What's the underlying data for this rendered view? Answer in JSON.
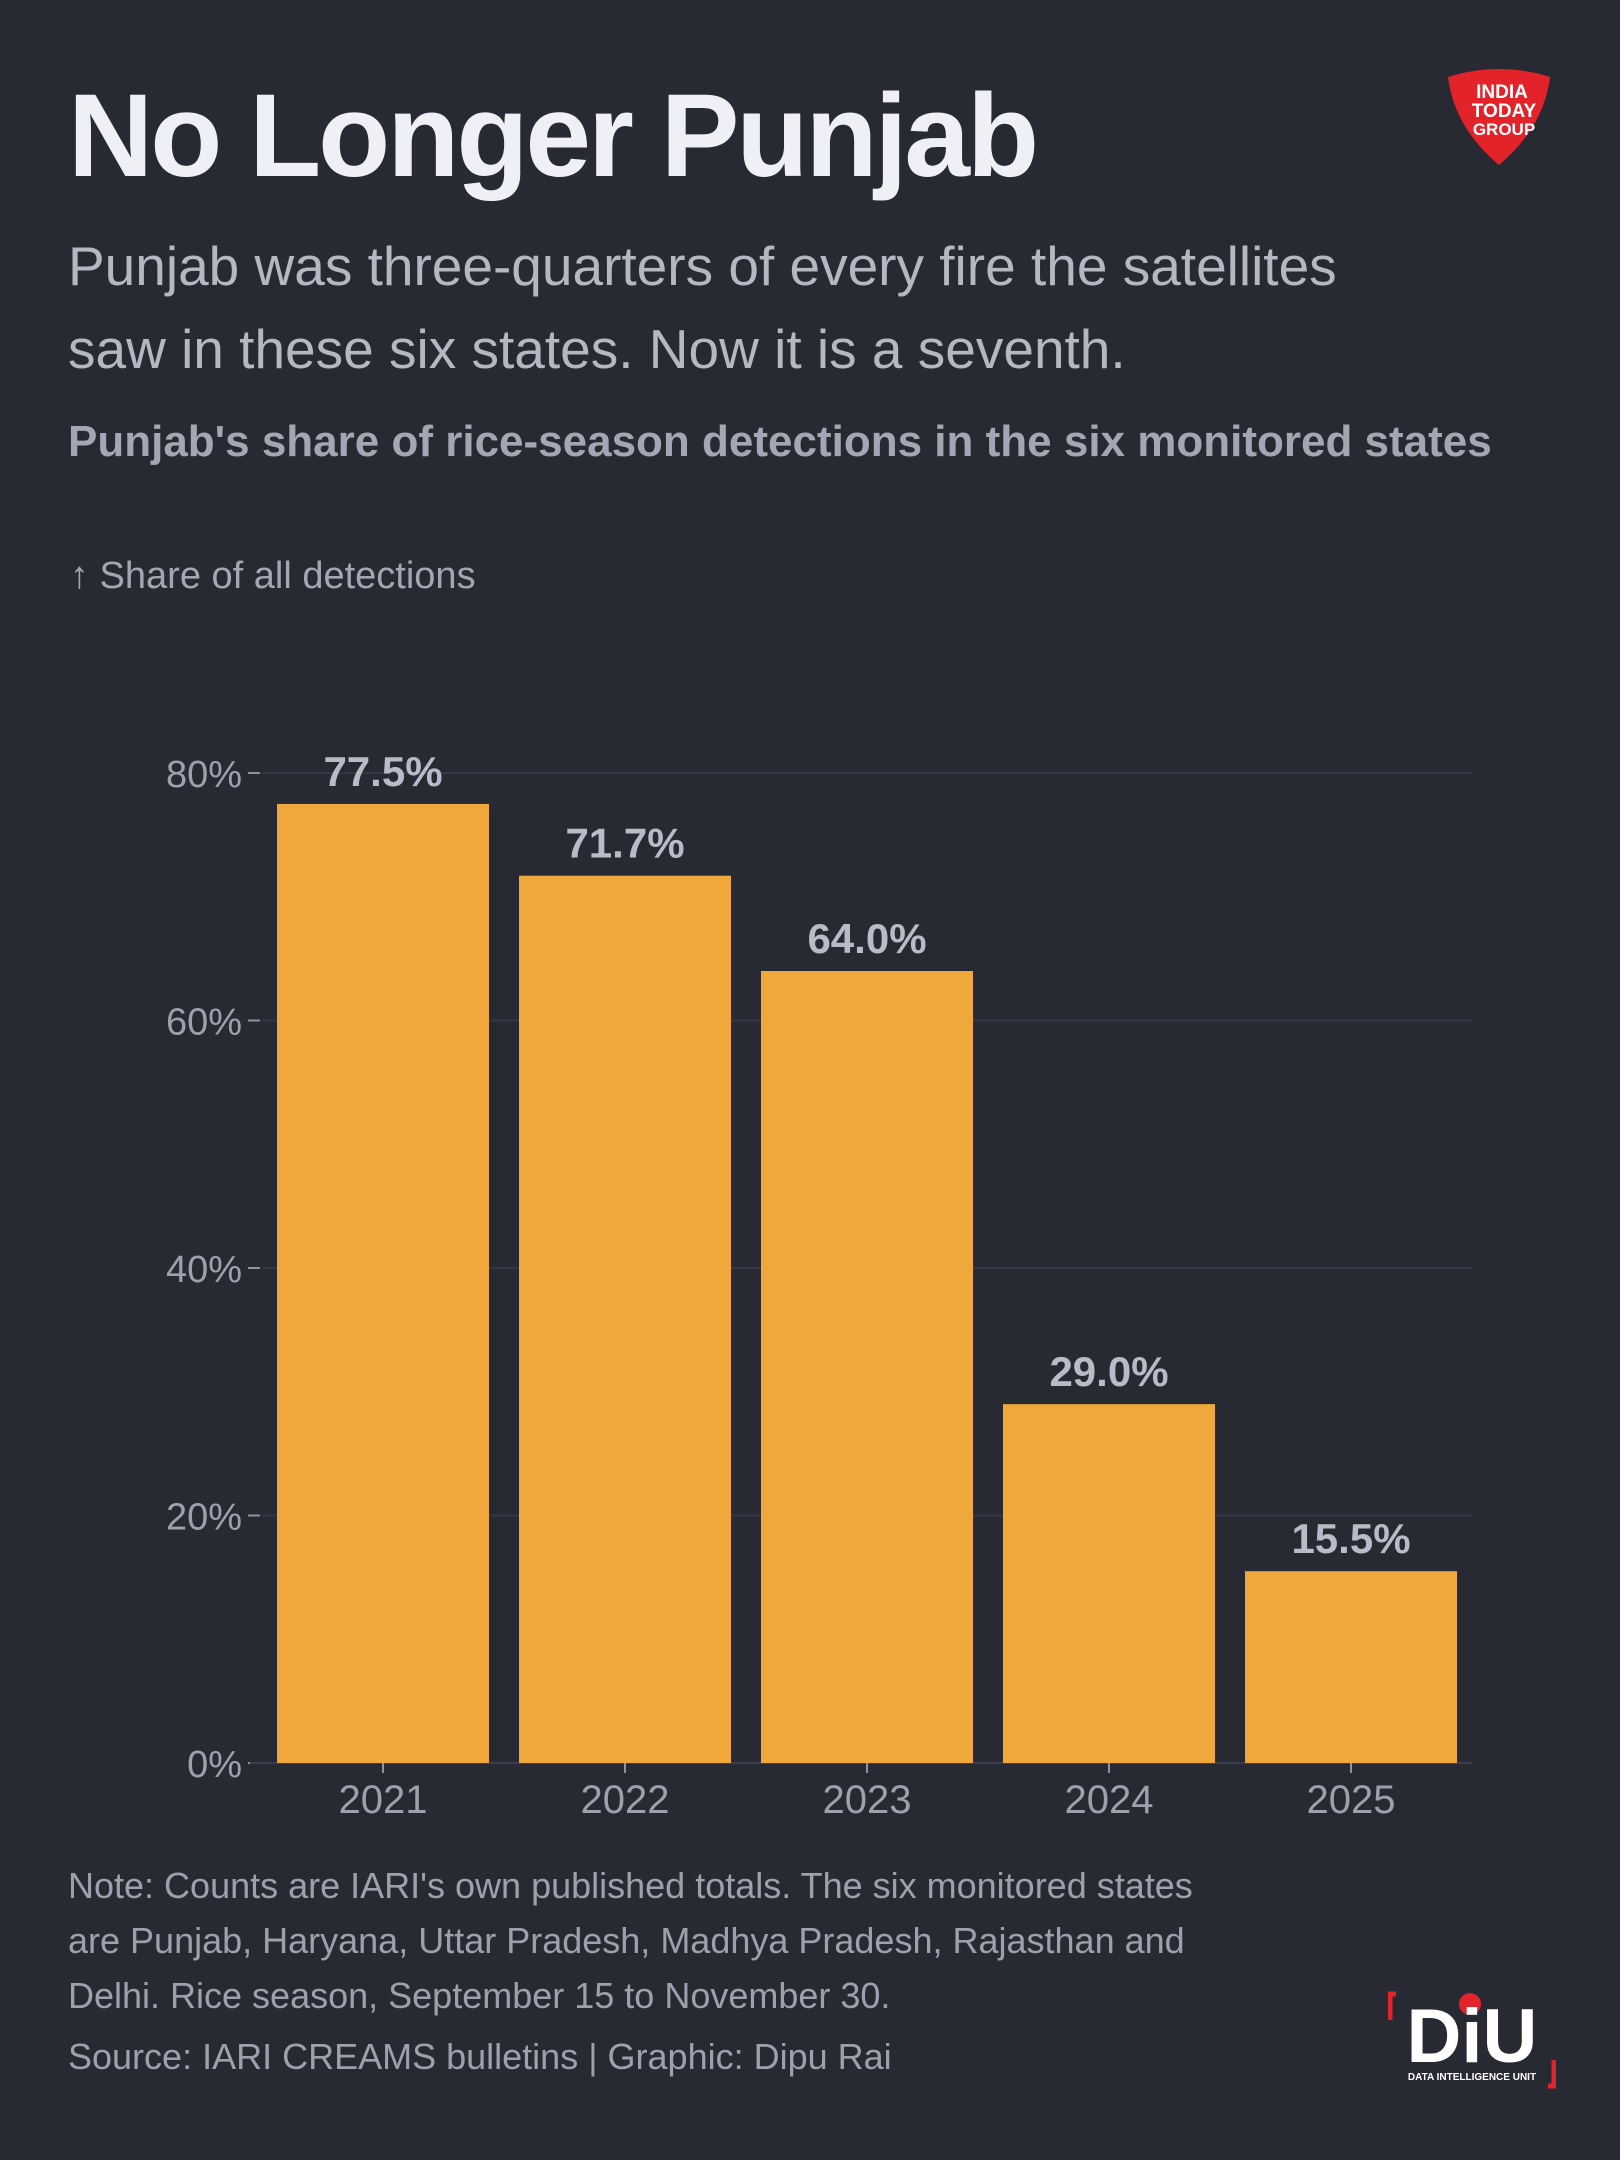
{
  "header": {
    "title": "No Longer Punjab",
    "subtitle_lines": [
      "Punjab was three-quarters of every fire the satellites",
      "saw in these six states. Now it is a seventh."
    ]
  },
  "chart_data": {
    "type": "bar",
    "title": "Punjab's share of rice-season detections in the six monitored states",
    "ylabel": "↑ Share of all detections",
    "xlabel": "",
    "categories": [
      "2021",
      "2022",
      "2023",
      "2024",
      "2025"
    ],
    "values": [
      77.5,
      71.7,
      64.0,
      29.0,
      15.5
    ],
    "data_labels": [
      "77.5%",
      "71.7%",
      "64.0%",
      "29.0%",
      "15.5%"
    ],
    "ylim": [
      0,
      80
    ],
    "yticks": [
      0,
      20,
      40,
      60,
      80
    ],
    "ytick_labels": [
      "0%",
      "20%",
      "40%",
      "60%",
      "80%"
    ],
    "grid": true,
    "bar_color": "#f0a83c"
  },
  "footer": {
    "note_lines": [
      "Note: Counts are IARI's own published totals. The six monitored states",
      "are Punjab, Haryana, Uttar Pradesh, Madhya Pradesh, Rajasthan and",
      "Delhi. Rice season, September 15 to November 30."
    ],
    "source": "Source: IARI CREAMS bulletins | Graphic: Dipu Rai"
  },
  "logos": {
    "india_today": [
      "INDIA",
      "TODAY",
      "GROUP"
    ],
    "diu": "DiU",
    "diu_tagline": "DATA INTELLIGENCE UNIT",
    "brand_red": "#e2232a"
  }
}
